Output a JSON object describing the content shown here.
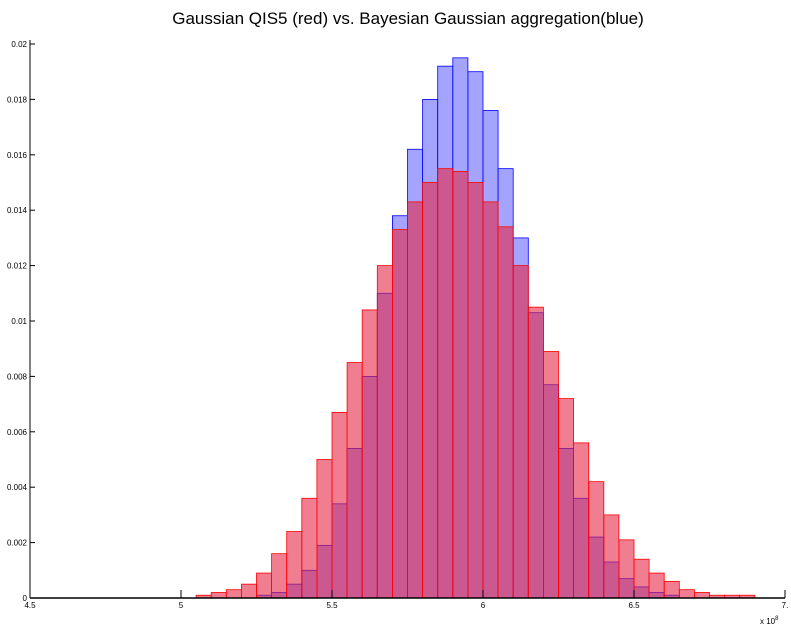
{
  "chart_data": {
    "type": "histogram",
    "title": "Gaussian QIS5 (red) vs. Bayesian Gaussian aggregation(blue)",
    "bins": [
      5.0,
      5.05,
      5.1,
      5.15,
      5.2,
      5.25,
      5.3,
      5.35,
      5.4,
      5.45,
      5.5,
      5.55,
      5.6,
      5.65,
      5.7,
      5.75,
      5.8,
      5.85,
      5.9,
      5.95,
      6.0,
      6.05,
      6.1,
      6.15,
      6.2,
      6.25,
      6.3,
      6.35,
      6.4,
      6.45,
      6.5,
      6.55,
      6.6,
      6.65,
      6.7,
      6.75,
      6.8,
      6.85,
      6.9,
      6.95,
      7.0,
      7.05,
      7.1
    ],
    "series": [
      {
        "color": "#0000ff",
        "fill": "rgba(90,90,255,0.55)",
        "values": [
          0,
          0,
          0,
          0,
          0,
          0.0001,
          0.0002,
          0.0005,
          0.001,
          0.0019,
          0.0034,
          0.0054,
          0.008,
          0.011,
          0.0138,
          0.0162,
          0.018,
          0.0192,
          0.0195,
          0.019,
          0.0176,
          0.0155,
          0.013,
          0.0103,
          0.0077,
          0.0054,
          0.0036,
          0.0022,
          0.0013,
          0.0007,
          0.0004,
          0.0002,
          0.0001,
          0,
          0,
          0,
          0,
          0,
          0,
          0,
          0,
          0
        ]
      },
      {
        "color": "#ff0000",
        "fill": "rgba(230,40,70,0.6)",
        "values": [
          0,
          0.0001,
          0.0002,
          0.0003,
          0.0005,
          0.0009,
          0.0016,
          0.0024,
          0.0036,
          0.005,
          0.0067,
          0.0085,
          0.0104,
          0.012,
          0.0133,
          0.0143,
          0.015,
          0.0155,
          0.0154,
          0.015,
          0.0143,
          0.0134,
          0.012,
          0.0105,
          0.0089,
          0.0072,
          0.0056,
          0.0042,
          0.003,
          0.0021,
          0.0014,
          0.0009,
          0.0006,
          0.0003,
          0.0002,
          0.0001,
          0.0001,
          0.0001,
          0,
          0,
          0,
          0
        ]
      }
    ],
    "xlim": [
      4.5,
      7
    ],
    "xticks": [
      4.5,
      5,
      5.5,
      6,
      6.5,
      {
        "value": 7,
        "label": "7."
      }
    ],
    "x_exponent": {
      "base": "x 10",
      "power": "8"
    },
    "ylim": [
      0,
      0.02
    ],
    "yticks": [
      0,
      0.002,
      0.004,
      0.006,
      0.008,
      0.01,
      0.012,
      0.014,
      0.016,
      0.018,
      0.02
    ]
  }
}
